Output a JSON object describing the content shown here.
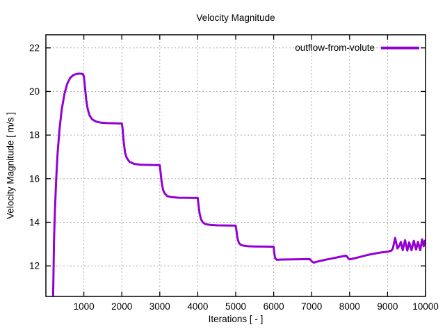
{
  "chart_data": {
    "type": "line",
    "title": "Velocity Magnitude",
    "xlabel": "Iterations [ - ]",
    "ylabel": "Velocity Magnitude [ m/s ]",
    "xlim": [
      0,
      10000
    ],
    "ylim": [
      10.6,
      22.6
    ],
    "xticks": [
      1000,
      2000,
      3000,
      4000,
      5000,
      6000,
      7000,
      8000,
      9000,
      10000
    ],
    "yticks": [
      12,
      14,
      16,
      18,
      20,
      22
    ],
    "grid": true,
    "legend_position": "top-right-inside",
    "series": [
      {
        "name": "outflow-from-volute",
        "color": "#9400d3",
        "points": [
          [
            190,
            10.6
          ],
          [
            200,
            11.6
          ],
          [
            215,
            13.2
          ],
          [
            240,
            14.6
          ],
          [
            270,
            15.9
          ],
          [
            310,
            17.2
          ],
          [
            360,
            18.3
          ],
          [
            420,
            19.2
          ],
          [
            490,
            19.9
          ],
          [
            560,
            20.35
          ],
          [
            640,
            20.62
          ],
          [
            720,
            20.75
          ],
          [
            800,
            20.8
          ],
          [
            900,
            20.82
          ],
          [
            970,
            20.8
          ],
          [
            1000,
            20.7
          ],
          [
            1030,
            20.2
          ],
          [
            1065,
            19.6
          ],
          [
            1100,
            19.2
          ],
          [
            1150,
            18.9
          ],
          [
            1220,
            18.72
          ],
          [
            1320,
            18.62
          ],
          [
            1450,
            18.57
          ],
          [
            1600,
            18.55
          ],
          [
            2000,
            18.53
          ],
          [
            2020,
            18.3
          ],
          [
            2050,
            17.7
          ],
          [
            2085,
            17.2
          ],
          [
            2130,
            16.95
          ],
          [
            2200,
            16.78
          ],
          [
            2320,
            16.68
          ],
          [
            2500,
            16.64
          ],
          [
            3000,
            16.62
          ],
          [
            3020,
            16.3
          ],
          [
            3050,
            15.85
          ],
          [
            3085,
            15.5
          ],
          [
            3130,
            15.32
          ],
          [
            3200,
            15.2
          ],
          [
            3320,
            15.15
          ],
          [
            3500,
            15.13
          ],
          [
            4000,
            15.12
          ],
          [
            4020,
            14.8
          ],
          [
            4050,
            14.4
          ],
          [
            4085,
            14.15
          ],
          [
            4130,
            14.0
          ],
          [
            4200,
            13.92
          ],
          [
            4320,
            13.88
          ],
          [
            4500,
            13.86
          ],
          [
            5000,
            13.85
          ],
          [
            5020,
            13.6
          ],
          [
            5050,
            13.25
          ],
          [
            5085,
            13.05
          ],
          [
            5130,
            12.97
          ],
          [
            5200,
            12.93
          ],
          [
            5320,
            12.9
          ],
          [
            5500,
            12.89
          ],
          [
            6000,
            12.88
          ],
          [
            6015,
            12.6
          ],
          [
            6040,
            12.35
          ],
          [
            6080,
            12.28
          ],
          [
            6200,
            12.29
          ],
          [
            6500,
            12.3
          ],
          [
            6950,
            12.31
          ],
          [
            7010,
            12.2
          ],
          [
            7060,
            12.15
          ],
          [
            7150,
            12.2
          ],
          [
            7300,
            12.26
          ],
          [
            7500,
            12.33
          ],
          [
            7700,
            12.4
          ],
          [
            7900,
            12.47
          ],
          [
            7940,
            12.42
          ],
          [
            7970,
            12.33
          ],
          [
            8010,
            12.3
          ],
          [
            8100,
            12.34
          ],
          [
            8250,
            12.4
          ],
          [
            8400,
            12.47
          ],
          [
            8550,
            12.53
          ],
          [
            8700,
            12.58
          ],
          [
            8850,
            12.62
          ],
          [
            9000,
            12.65
          ],
          [
            9100,
            12.7
          ],
          [
            9140,
            12.8
          ],
          [
            9200,
            13.28
          ],
          [
            9260,
            12.8
          ],
          [
            9310,
            12.92
          ],
          [
            9350,
            13.1
          ],
          [
            9400,
            12.72
          ],
          [
            9460,
            13.18
          ],
          [
            9520,
            12.7
          ],
          [
            9570,
            13.08
          ],
          [
            9630,
            12.72
          ],
          [
            9690,
            13.15
          ],
          [
            9750,
            12.75
          ],
          [
            9800,
            13.1
          ],
          [
            9860,
            12.72
          ],
          [
            9910,
            13.22
          ],
          [
            9950,
            12.9
          ],
          [
            9980,
            13.15
          ],
          [
            10000,
            13.0
          ]
        ]
      }
    ]
  }
}
